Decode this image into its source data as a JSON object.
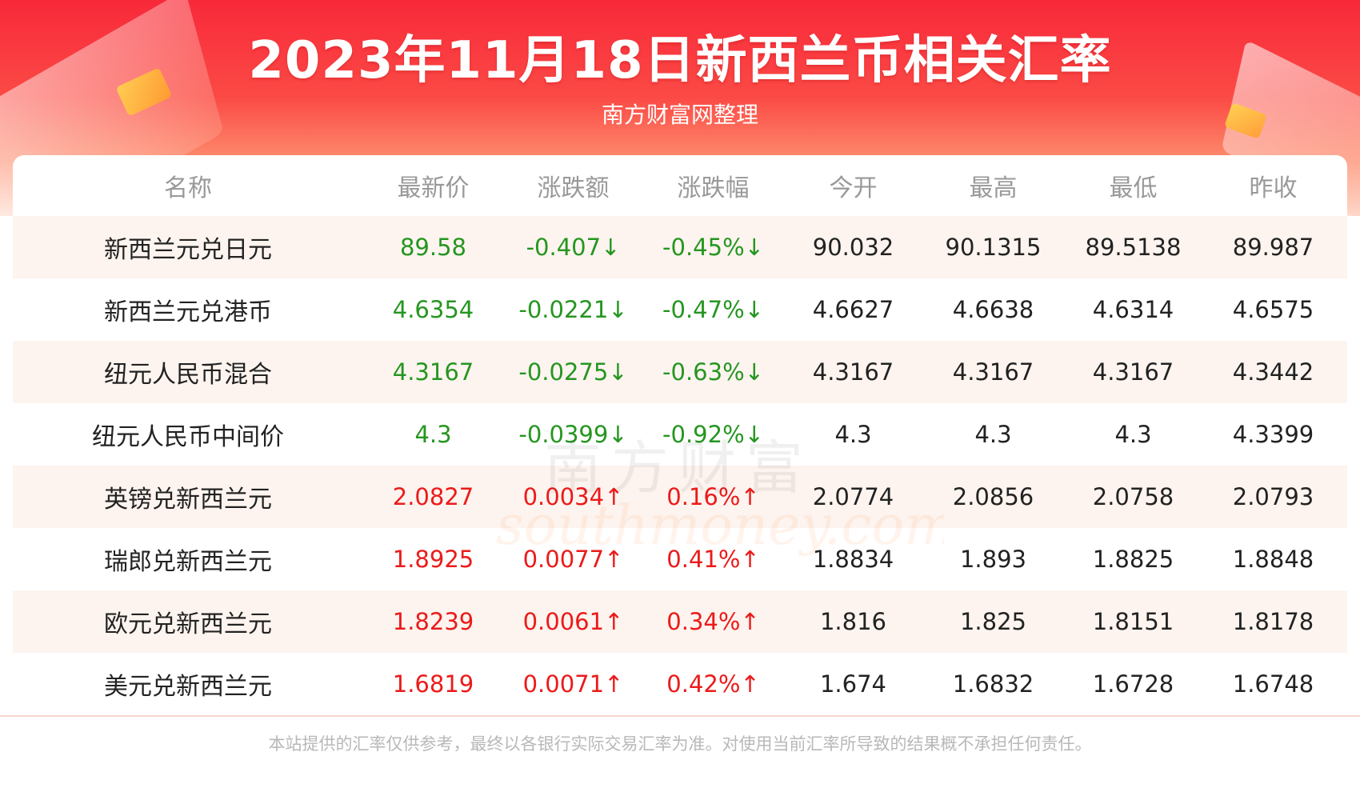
{
  "header": {
    "title": "2023年11月18日新西兰币相关汇率",
    "subtitle": "南方财富网整理"
  },
  "colors": {
    "down": "#259620",
    "up": "#ec1a1a",
    "banner": "#f8293a"
  },
  "table": {
    "columns": [
      "名称",
      "最新价",
      "涨跌额",
      "涨跌幅",
      "今开",
      "最高",
      "最低",
      "昨收"
    ],
    "rows": [
      {
        "name": "新西兰元兑日元",
        "latest": "89.58",
        "change": "-0.407↓",
        "pct": "-0.45%↓",
        "open": "90.032",
        "high": "90.1315",
        "low": "89.5138",
        "prev": "89.987",
        "direction": "down"
      },
      {
        "name": "新西兰元兑港币",
        "latest": "4.6354",
        "change": "-0.0221↓",
        "pct": "-0.47%↓",
        "open": "4.6627",
        "high": "4.6638",
        "low": "4.6314",
        "prev": "4.6575",
        "direction": "down"
      },
      {
        "name": "纽元人民币混合",
        "latest": "4.3167",
        "change": "-0.0275↓",
        "pct": "-0.63%↓",
        "open": "4.3167",
        "high": "4.3167",
        "low": "4.3167",
        "prev": "4.3442",
        "direction": "down"
      },
      {
        "name": "纽元人民币中间价",
        "latest": "4.3",
        "change": "-0.0399↓",
        "pct": "-0.92%↓",
        "open": "4.3",
        "high": "4.3",
        "low": "4.3",
        "prev": "4.3399",
        "direction": "down"
      },
      {
        "name": "英镑兑新西兰元",
        "latest": "2.0827",
        "change": "0.0034↑",
        "pct": "0.16%↑",
        "open": "2.0774",
        "high": "2.0856",
        "low": "2.0758",
        "prev": "2.0793",
        "direction": "up"
      },
      {
        "name": "瑞郎兑新西兰元",
        "latest": "1.8925",
        "change": "0.0077↑",
        "pct": "0.41%↑",
        "open": "1.8834",
        "high": "1.893",
        "low": "1.8825",
        "prev": "1.8848",
        "direction": "up"
      },
      {
        "name": "欧元兑新西兰元",
        "latest": "1.8239",
        "change": "0.0061↑",
        "pct": "0.34%↑",
        "open": "1.816",
        "high": "1.825",
        "low": "1.8151",
        "prev": "1.8178",
        "direction": "up"
      },
      {
        "name": "美元兑新西兰元",
        "latest": "1.6819",
        "change": "0.0071↑",
        "pct": "0.42%↑",
        "open": "1.674",
        "high": "1.6832",
        "low": "1.6728",
        "prev": "1.6748",
        "direction": "up"
      }
    ]
  },
  "watermark": {
    "cn": "南方财富",
    "en": "southmoney.com"
  },
  "footer": {
    "disclaimer": "本站提供的汇率仅供参考，最终以各银行实际交易汇率为准。对使用当前汇率所导致的结果概不承担任何责任。"
  }
}
